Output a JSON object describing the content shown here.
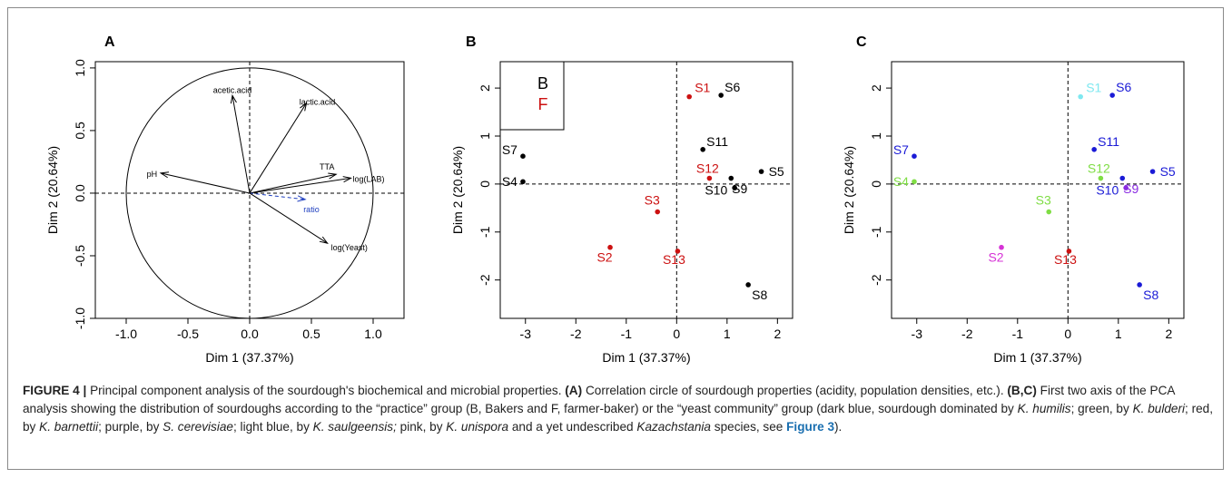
{
  "panel_labels": [
    "A",
    "B",
    "C"
  ],
  "caption": {
    "figure_label": "FIGURE 4 |",
    "line1_plain": "Principal component analysis of the sourdough's biochemical and microbial properties.",
    "panel_a_ref": "(A)",
    "panel_a_text": "Correlation circle of sourdough properties (acidity, population",
    "line2_plain": "densities, etc.).",
    "panel_bc_ref": "(B,C)",
    "panel_bc_text": "First two axis of the PCA analysis showing the distribution of sourdoughs according to the “practice” group (B, Bakers and F, farmer-baker) or",
    "line3_pre": "the “yeast community” group (dark blue, sourdough dominated by",
    "sp1": "K. humilis",
    "t1": "; green, by",
    "sp2": "K. bulderi",
    "t2": "; red, by",
    "sp3": "K. barnettii",
    "t3": "; purple, by",
    "sp4": "S. cerevisiae",
    "t4": "; light blue, by",
    "sp5": "K. saulgeensis;",
    "t5": " pink, by",
    "sp6": "K. unispora",
    "t6": " and a yet undescribed",
    "sp7": "Kazachstania",
    "t7": " species, see",
    "fig_ref": "Figure 3",
    "t8": ")."
  },
  "chart_data": [
    {
      "panel": "A",
      "type": "scatter",
      "subtype": "correlation-circle",
      "xlabel": "Dim 1 (37.37%)",
      "ylabel": "Dim 2 (20.64%)",
      "xlim": [
        -1.25,
        1.25
      ],
      "ylim": [
        -1.0,
        1.05
      ],
      "xticks": [
        "-1.0",
        "-0.5",
        "0.0",
        "0.5",
        "1.0"
      ],
      "yticks": [
        "-1.0",
        "-0.5",
        "0.0",
        "0.5",
        "1.0"
      ],
      "xtick_values": [
        -1.0,
        -0.5,
        0.0,
        0.5,
        1.0
      ],
      "ytick_values": [
        -1.0,
        -0.5,
        0.0,
        0.5,
        1.0
      ],
      "circle_radius": 1.0,
      "vectors": [
        {
          "name": "acetic.acid",
          "x": -0.14,
          "y": 0.78,
          "color": "#000000"
        },
        {
          "name": "lactic.acid",
          "x": 0.46,
          "y": 0.72,
          "color": "#000000"
        },
        {
          "name": "pH",
          "x": -0.72,
          "y": 0.16,
          "color": "#000000"
        },
        {
          "name": "TTA",
          "x": 0.7,
          "y": 0.15,
          "color": "#000000"
        },
        {
          "name": "log(LAB)",
          "x": 0.82,
          "y": 0.12,
          "color": "#000000"
        },
        {
          "name": "ratio",
          "x": 0.45,
          "y": -0.05,
          "color": "#1f3fbf",
          "dashed": true
        },
        {
          "name": "log(Yeast)",
          "x": 0.63,
          "y": -0.4,
          "color": "#000000"
        }
      ]
    },
    {
      "panel": "B",
      "type": "scatter",
      "xlabel": "Dim 1 (37.37%)",
      "ylabel": "Dim 2 (20.64%)",
      "xlim": [
        -3.5,
        2.3
      ],
      "ylim": [
        -2.8,
        2.55
      ],
      "xticks": [
        "-3",
        "-2",
        "-1",
        "0",
        "1",
        "2"
      ],
      "yticks": [
        "-2",
        "-1",
        "0",
        "1",
        "2"
      ],
      "xtick_values": [
        -3,
        -2,
        -1,
        0,
        1,
        2
      ],
      "ytick_values": [
        -2,
        -1,
        0,
        1,
        2
      ],
      "legend": {
        "position": "top-left",
        "entries": [
          {
            "name": "B",
            "color": "#000000"
          },
          {
            "name": "F",
            "color": "#cc1111"
          }
        ]
      },
      "points": [
        {
          "label": "S1",
          "x": 0.25,
          "y": 1.82,
          "group": "F"
        },
        {
          "label": "S2",
          "x": -1.32,
          "y": -1.32,
          "group": "F"
        },
        {
          "label": "S3",
          "x": -0.38,
          "y": -0.58,
          "group": "F"
        },
        {
          "label": "S4",
          "x": -3.05,
          "y": 0.05,
          "group": "B"
        },
        {
          "label": "S5",
          "x": 1.68,
          "y": 0.26,
          "group": "B"
        },
        {
          "label": "S6",
          "x": 0.88,
          "y": 1.85,
          "group": "B"
        },
        {
          "label": "S7",
          "x": -3.05,
          "y": 0.58,
          "group": "B"
        },
        {
          "label": "S8",
          "x": 1.42,
          "y": -2.1,
          "group": "B"
        },
        {
          "label": "S9",
          "x": 1.15,
          "y": -0.08,
          "group": "B"
        },
        {
          "label": "S10",
          "x": 1.08,
          "y": 0.12,
          "group": "B"
        },
        {
          "label": "S11",
          "x": 0.52,
          "y": 0.72,
          "group": "B"
        },
        {
          "label": "S12",
          "x": 0.65,
          "y": 0.12,
          "group": "F"
        },
        {
          "label": "S13",
          "x": 0.02,
          "y": -1.4,
          "group": "F"
        }
      ]
    },
    {
      "panel": "C",
      "type": "scatter",
      "xlabel": "Dim 1 (37.37%)",
      "ylabel": "Dim 2 (20.64%)",
      "xlim": [
        -3.5,
        2.3
      ],
      "ylim": [
        -2.8,
        2.55
      ],
      "xticks": [
        "-3",
        "-2",
        "-1",
        "0",
        "1",
        "2"
      ],
      "yticks": [
        "-2",
        "-1",
        "0",
        "1",
        "2"
      ],
      "xtick_values": [
        -3,
        -2,
        -1,
        0,
        1,
        2
      ],
      "ytick_values": [
        -2,
        -1,
        0,
        1,
        2
      ],
      "points": [
        {
          "label": "S1",
          "x": 0.25,
          "y": 1.82,
          "color": "#7fe8f0"
        },
        {
          "label": "S2",
          "x": -1.32,
          "y": -1.32,
          "color": "#d633d6"
        },
        {
          "label": "S3",
          "x": -0.38,
          "y": -0.58,
          "color": "#7fdd44"
        },
        {
          "label": "S4",
          "x": -3.05,
          "y": 0.05,
          "color": "#7fdd44"
        },
        {
          "label": "S5",
          "x": 1.68,
          "y": 0.26,
          "color": "#1a1ad6"
        },
        {
          "label": "S6",
          "x": 0.88,
          "y": 1.85,
          "color": "#1a1ad6"
        },
        {
          "label": "S7",
          "x": -3.05,
          "y": 0.58,
          "color": "#1a1ad6"
        },
        {
          "label": "S8",
          "x": 1.42,
          "y": -2.1,
          "color": "#1a1ad6"
        },
        {
          "label": "S9",
          "x": 1.15,
          "y": -0.08,
          "color": "#8a2be2"
        },
        {
          "label": "S10",
          "x": 1.08,
          "y": 0.12,
          "color": "#1a1ad6"
        },
        {
          "label": "S11",
          "x": 0.52,
          "y": 0.72,
          "color": "#1a1ad6"
        },
        {
          "label": "S12",
          "x": 0.65,
          "y": 0.12,
          "color": "#7fdd44"
        },
        {
          "label": "S13",
          "x": 0.02,
          "y": -1.4,
          "color": "#cc1111"
        }
      ]
    }
  ],
  "colors": {
    "B": "#000000",
    "F": "#cc1111"
  }
}
